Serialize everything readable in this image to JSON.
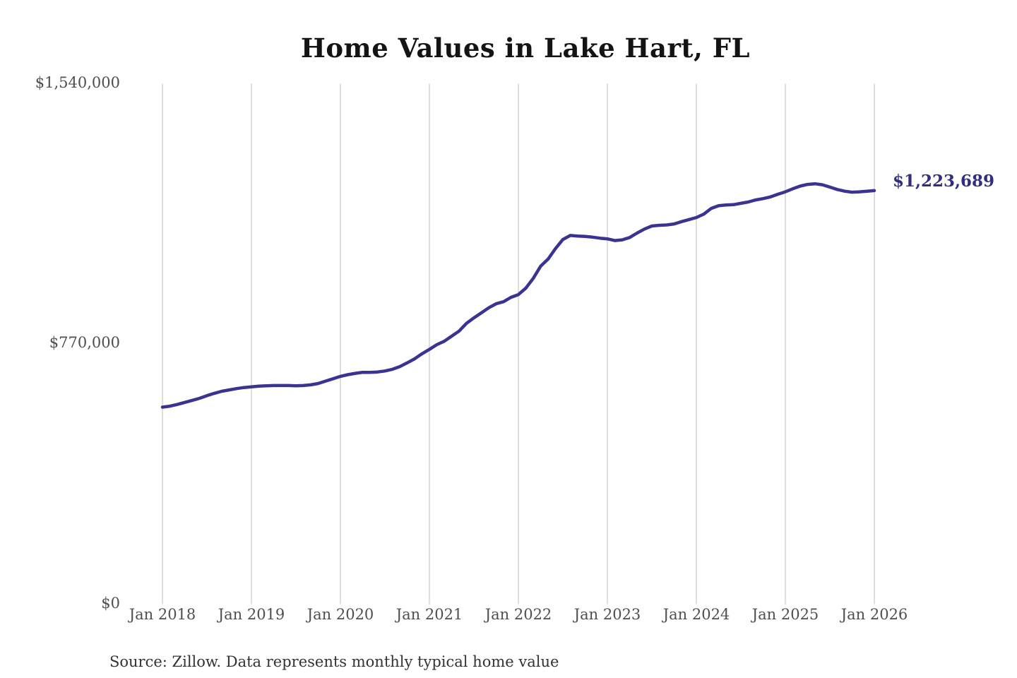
{
  "title": "Home Values in Lake Hart, FL",
  "source_note": "Source: Zillow. Data represents monthly typical home value",
  "colors": {
    "line": "#3a3490",
    "end_label_text": "#322d80",
    "grid": "#cccccc",
    "axis_text": "#4f4f4f",
    "title_text": "#141414",
    "source_text": "#333333",
    "background": "#ffffff"
  },
  "chart_data": {
    "type": "line",
    "title": "Home Values in Lake Hart, FL",
    "xlabel": "",
    "ylabel": "",
    "x_tick_labels": [
      "Jan 2018",
      "Jan 2019",
      "Jan 2020",
      "Jan 2021",
      "Jan 2022",
      "Jan 2023",
      "Jan 2024",
      "Jan 2025",
      "Jan 2026"
    ],
    "y_tick_labels": [
      "$0",
      "$770,000",
      "$1,540,000"
    ],
    "y_tick_values": [
      0,
      770000,
      1540000
    ],
    "ylim": [
      0,
      1540000
    ],
    "grid": "vertical-only",
    "legend": "none",
    "end_label": "$1,223,689",
    "end_value": 1223689,
    "series": [
      {
        "name": "Typical home value",
        "start": "Jan 2018",
        "frequency": "monthly",
        "values": [
          583000,
          586000,
          591000,
          597000,
          603000,
          609000,
          617000,
          624000,
          630000,
          634000,
          638000,
          641000,
          643000,
          645000,
          646000,
          647000,
          647000,
          647000,
          646000,
          647000,
          649000,
          653000,
          660000,
          667000,
          674000,
          679000,
          683000,
          686000,
          686000,
          687000,
          690000,
          695000,
          703000,
          714000,
          726000,
          741000,
          754000,
          768000,
          778000,
          793000,
          808000,
          831000,
          847000,
          862000,
          877000,
          889000,
          895000,
          908000,
          916000,
          935000,
          964000,
          1000000,
          1021000,
          1052000,
          1079000,
          1091000,
          1089000,
          1088000,
          1086000,
          1083000,
          1081000,
          1076000,
          1078000,
          1085000,
          1098000,
          1110000,
          1119000,
          1121000,
          1122000,
          1125000,
          1132000,
          1138000,
          1144000,
          1154000,
          1171000,
          1179000,
          1181000,
          1182000,
          1186000,
          1190000,
          1196000,
          1200000,
          1205000,
          1213000,
          1220000,
          1229000,
          1237000,
          1242000,
          1244000,
          1241000,
          1234000,
          1227000,
          1222000,
          1219000,
          1220000,
          1222000,
          1223689
        ]
      }
    ]
  }
}
